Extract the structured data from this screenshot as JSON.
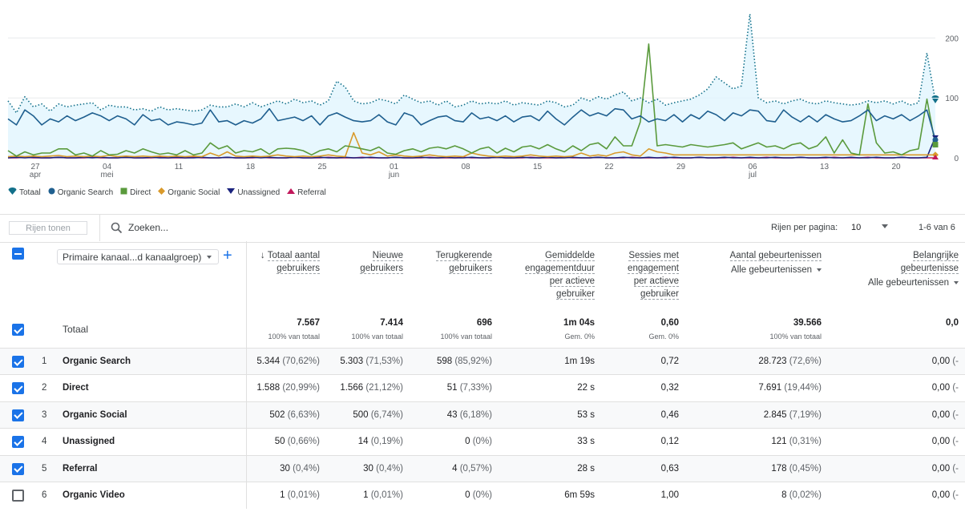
{
  "chart": {
    "x_labels": [
      {
        "day": "27",
        "month": "apr"
      },
      {
        "day": "04",
        "month": "mei"
      },
      {
        "day": "11",
        "month": ""
      },
      {
        "day": "18",
        "month": ""
      },
      {
        "day": "25",
        "month": ""
      },
      {
        "day": "01",
        "month": "jun"
      },
      {
        "day": "08",
        "month": ""
      },
      {
        "day": "15",
        "month": ""
      },
      {
        "day": "22",
        "month": ""
      },
      {
        "day": "29",
        "month": ""
      },
      {
        "day": "06",
        "month": "jul"
      },
      {
        "day": "13",
        "month": ""
      },
      {
        "day": "20",
        "month": ""
      }
    ],
    "y_ticks": [
      "0",
      "100",
      "200"
    ],
    "ylim": [
      0,
      250
    ],
    "colors": {
      "total": "#12708a",
      "organic_search": "#1f5f8f",
      "direct": "#5a9a3c",
      "organic_social": "#d99a2b",
      "unassigned": "#1a237e",
      "referral": "#c2185b",
      "total_fill": "#e1f5fe",
      "grid": "#e8eaed"
    },
    "series": [
      {
        "key": "total",
        "name": "Totaal",
        "style": "dotted",
        "values": [
          95,
          75,
          102,
          85,
          90,
          78,
          90,
          85,
          88,
          90,
          92,
          80,
          88,
          85,
          85,
          80,
          82,
          78,
          85,
          80,
          82,
          80,
          78,
          80,
          88,
          85,
          85,
          90,
          85,
          92,
          85,
          90,
          95,
          90,
          98,
          92,
          95,
          88,
          95,
          128,
          118,
          95,
          90,
          92,
          98,
          95,
          90,
          105,
          98,
          92,
          95,
          88,
          95,
          85,
          88,
          95,
          90,
          92,
          90,
          95,
          88,
          92,
          90,
          88,
          95,
          92,
          85,
          88,
          100,
          95,
          102,
          98,
          105,
          110,
          95,
          100,
          92,
          98,
          88,
          92,
          95,
          98,
          105,
          115,
          135,
          125,
          115,
          120,
          240,
          100,
          92,
          95,
          90,
          95,
          98,
          92,
          90,
          95,
          92,
          90,
          88,
          90,
          95,
          92,
          95,
          90,
          95,
          88,
          92,
          175,
          95
        ]
      },
      {
        "key": "organic_search",
        "name": "Organic Search",
        "style": "solid",
        "values": [
          65,
          55,
          80,
          70,
          55,
          65,
          60,
          70,
          62,
          68,
          75,
          70,
          62,
          70,
          65,
          55,
          72,
          62,
          65,
          55,
          60,
          58,
          55,
          58,
          80,
          60,
          62,
          55,
          62,
          58,
          65,
          82,
          62,
          65,
          68,
          62,
          70,
          55,
          70,
          75,
          68,
          62,
          60,
          62,
          72,
          60,
          55,
          75,
          70,
          55,
          62,
          68,
          70,
          62,
          60,
          75,
          65,
          68,
          62,
          70,
          60,
          68,
          70,
          62,
          78,
          65,
          55,
          68,
          80,
          70,
          75,
          70,
          82,
          80,
          65,
          70,
          60,
          65,
          62,
          72,
          60,
          72,
          65,
          78,
          72,
          62,
          75,
          70,
          80,
          78,
          62,
          60,
          80,
          68,
          60,
          70,
          60,
          72,
          65,
          60,
          62,
          70,
          80,
          62,
          70,
          65,
          72,
          62,
          70,
          80,
          30
        ]
      },
      {
        "key": "direct",
        "name": "Direct",
        "style": "solid",
        "values": [
          12,
          3,
          10,
          5,
          8,
          8,
          15,
          15,
          5,
          8,
          3,
          12,
          5,
          6,
          12,
          8,
          15,
          10,
          6,
          8,
          5,
          12,
          5,
          8,
          25,
          15,
          20,
          8,
          12,
          10,
          15,
          6,
          15,
          16,
          15,
          12,
          5,
          12,
          15,
          10,
          20,
          18,
          15,
          12,
          18,
          8,
          6,
          12,
          15,
          10,
          16,
          18,
          15,
          20,
          15,
          8,
          15,
          18,
          8,
          16,
          10,
          18,
          20,
          15,
          22,
          15,
          10,
          20,
          12,
          22,
          25,
          15,
          35,
          20,
          20,
          60,
          190,
          20,
          22,
          20,
          18,
          22,
          20,
          18,
          20,
          22,
          25,
          15,
          20,
          25,
          18,
          20,
          15,
          22,
          25,
          15,
          20,
          35,
          8,
          30,
          8,
          5,
          90,
          25,
          8,
          10,
          5,
          12,
          15,
          98,
          22
        ]
      },
      {
        "key": "organic_social",
        "name": "Organic Social",
        "style": "solid",
        "values": [
          2,
          3,
          2,
          3,
          2,
          3,
          4,
          2,
          3,
          2,
          3,
          2,
          4,
          2,
          3,
          2,
          3,
          2,
          3,
          2,
          3,
          2,
          3,
          2,
          8,
          3,
          10,
          3,
          2,
          3,
          2,
          3,
          5,
          3,
          2,
          3,
          2,
          3,
          5,
          3,
          2,
          42,
          8,
          5,
          10,
          3,
          5,
          3,
          2,
          3,
          5,
          3,
          2,
          3,
          2,
          8,
          5,
          3,
          2,
          3,
          2,
          3,
          5,
          3,
          2,
          3,
          2,
          3,
          8,
          3,
          5,
          3,
          8,
          10,
          5,
          3,
          15,
          10,
          8,
          5,
          5,
          5,
          5,
          5,
          5,
          5,
          5,
          5,
          5,
          5,
          5,
          5,
          5,
          5,
          5,
          5,
          5,
          5,
          5,
          5,
          5,
          5,
          5,
          5,
          5,
          5,
          5,
          5,
          5,
          5,
          5
        ]
      },
      {
        "key": "unassigned",
        "name": "Unassigned",
        "style": "solid",
        "values": [
          0,
          1,
          0,
          1,
          0,
          0,
          1,
          0,
          0,
          1,
          0,
          1,
          0,
          0,
          1,
          0,
          0,
          1,
          0,
          0,
          1,
          0,
          0,
          1,
          0,
          0,
          1,
          0,
          0,
          1,
          0,
          1,
          0,
          0,
          1,
          0,
          0,
          1,
          0,
          0,
          1,
          0,
          0,
          1,
          0,
          0,
          1,
          0,
          0,
          1,
          0,
          0,
          1,
          0,
          0,
          1,
          0,
          0,
          1,
          0,
          0,
          1,
          0,
          0,
          1,
          0,
          0,
          1,
          0,
          0,
          1,
          0,
          0,
          1,
          0,
          0,
          1,
          0,
          0,
          1,
          0,
          0,
          1,
          0,
          0,
          1,
          0,
          0,
          1,
          0,
          0,
          1,
          0,
          0,
          1,
          0,
          0,
          1,
          0,
          0,
          1,
          0,
          0,
          1,
          0,
          0,
          1,
          0,
          0,
          1,
          35
        ]
      },
      {
        "key": "referral",
        "name": "Referral",
        "style": "solid",
        "values": [
          0,
          0,
          1,
          0,
          0,
          0,
          1,
          0,
          0,
          0,
          1,
          0,
          0,
          0,
          1,
          0,
          0,
          0,
          1,
          0,
          0,
          0,
          1,
          0,
          0,
          0,
          1,
          0,
          0,
          0,
          1,
          0,
          0,
          0,
          1,
          0,
          0,
          0,
          1,
          0,
          0,
          0,
          1,
          0,
          0,
          0,
          1,
          0,
          0,
          0,
          1,
          0,
          0,
          0,
          1,
          0,
          0,
          0,
          1,
          0,
          0,
          0,
          1,
          0,
          0,
          0,
          1,
          0,
          0,
          0,
          1,
          0,
          0,
          0,
          1,
          0,
          0,
          0,
          1,
          0,
          0,
          0,
          1,
          0,
          0,
          0,
          1,
          0,
          0,
          0,
          1,
          0,
          0,
          0,
          1,
          0,
          0,
          0,
          1,
          0,
          0,
          0,
          1,
          0,
          0,
          0,
          1,
          0,
          0,
          0,
          0
        ]
      }
    ]
  },
  "legend": [
    {
      "label": "Totaal",
      "icon": "pin-marker",
      "color": "#12708a"
    },
    {
      "label": "Organic Search",
      "icon": "circle-marker",
      "color": "#1f5f8f"
    },
    {
      "label": "Direct",
      "icon": "square-marker",
      "color": "#5a9a3c"
    },
    {
      "label": "Organic Social",
      "icon": "diamond-marker",
      "color": "#d99a2b"
    },
    {
      "label": "Unassigned",
      "icon": "triangle-down-marker",
      "color": "#1a237e"
    },
    {
      "label": "Referral",
      "icon": "triangle-up-marker",
      "color": "#c2185b"
    }
  ],
  "toolbar": {
    "rows_button": "Rijen tonen",
    "search_placeholder": "Zoeken...",
    "rows_per_page_label": "Rijen per pagina:",
    "rows_per_page_value": "10",
    "page_range": "1-6 van 6"
  },
  "table": {
    "dimension_select": "Primaire kanaal...d kanaalgroep)",
    "add_dimension": "+",
    "total_label": "Totaal",
    "columns": [
      {
        "lines": [
          "Totaal aantal",
          "gebruikers"
        ],
        "sorted": true,
        "total": "7.567",
        "total_sub": "100% van totaal"
      },
      {
        "lines": [
          "Nieuwe",
          "gebruikers"
        ],
        "total": "7.414",
        "total_sub": "100% van totaal"
      },
      {
        "lines": [
          "Terugkerende",
          "gebruikers"
        ],
        "total": "696",
        "total_sub": "100% van totaal"
      },
      {
        "lines": [
          "Gemiddelde",
          "engagementduur",
          "per actieve",
          "gebruiker"
        ],
        "total": "1m 04s",
        "total_sub": "Gem. 0%"
      },
      {
        "lines": [
          "Sessies met",
          "engagement",
          "per actieve",
          "gebruiker"
        ],
        "total": "0,60",
        "total_sub": "Gem. 0%"
      },
      {
        "lines": [
          "Aantal gebeurtenissen"
        ],
        "sub": "Alle gebeurtenissen",
        "total": "39.566",
        "total_sub": "100% van totaal"
      },
      {
        "lines": [
          "Belangrijke",
          "gebeurtenisse"
        ],
        "sub": "Alle gebeurtenissen",
        "total": "0,0",
        "total_sub": ""
      }
    ],
    "rows": [
      {
        "idx": "1",
        "name": "Organic Search",
        "checked": true,
        "cells": [
          [
            "5.344",
            "(70,62%)"
          ],
          [
            "5.303",
            "(71,53%)"
          ],
          [
            "598",
            "(85,92%)"
          ],
          [
            "1m 19s",
            ""
          ],
          [
            "0,72",
            ""
          ],
          [
            "28.723",
            "(72,6%)"
          ],
          [
            "0,00",
            "(-"
          ]
        ]
      },
      {
        "idx": "2",
        "name": "Direct",
        "checked": true,
        "cells": [
          [
            "1.588",
            "(20,99%)"
          ],
          [
            "1.566",
            "(21,12%)"
          ],
          [
            "51",
            "(7,33%)"
          ],
          [
            "22 s",
            ""
          ],
          [
            "0,32",
            ""
          ],
          [
            "7.691",
            "(19,44%)"
          ],
          [
            "0,00",
            "(-"
          ]
        ]
      },
      {
        "idx": "3",
        "name": "Organic Social",
        "checked": true,
        "cells": [
          [
            "502",
            "(6,63%)"
          ],
          [
            "500",
            "(6,74%)"
          ],
          [
            "43",
            "(6,18%)"
          ],
          [
            "53 s",
            ""
          ],
          [
            "0,46",
            ""
          ],
          [
            "2.845",
            "(7,19%)"
          ],
          [
            "0,00",
            "(-"
          ]
        ]
      },
      {
        "idx": "4",
        "name": "Unassigned",
        "checked": true,
        "cells": [
          [
            "50",
            "(0,66%)"
          ],
          [
            "14",
            "(0,19%)"
          ],
          [
            "0",
            "(0%)"
          ],
          [
            "33 s",
            ""
          ],
          [
            "0,12",
            ""
          ],
          [
            "121",
            "(0,31%)"
          ],
          [
            "0,00",
            "(-"
          ]
        ]
      },
      {
        "idx": "5",
        "name": "Referral",
        "checked": true,
        "cells": [
          [
            "30",
            "(0,4%)"
          ],
          [
            "30",
            "(0,4%)"
          ],
          [
            "4",
            "(0,57%)"
          ],
          [
            "28 s",
            ""
          ],
          [
            "0,63",
            ""
          ],
          [
            "178",
            "(0,45%)"
          ],
          [
            "0,00",
            "(-"
          ]
        ]
      },
      {
        "idx": "6",
        "name": "Organic Video",
        "checked": false,
        "cells": [
          [
            "1",
            "(0,01%)"
          ],
          [
            "1",
            "(0,01%)"
          ],
          [
            "0",
            "(0%)"
          ],
          [
            "6m 59s",
            ""
          ],
          [
            "1,00",
            ""
          ],
          [
            "8",
            "(0,02%)"
          ],
          [
            "0,00",
            "(-"
          ]
        ]
      }
    ]
  }
}
